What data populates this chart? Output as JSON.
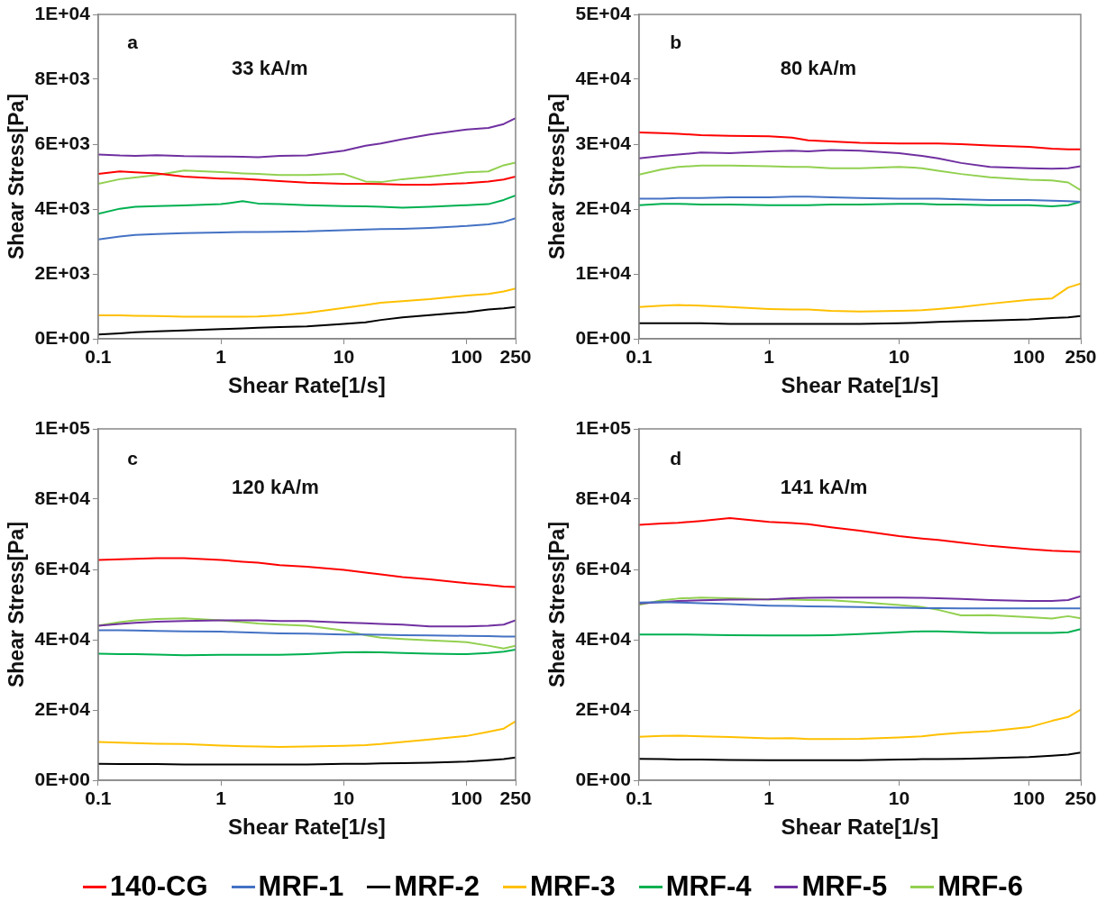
{
  "chart_data": [
    {
      "type": "line",
      "xlabel": "Shear Rate[1/s]",
      "ylabel": "Shear Stress[Pa]",
      "annotations": [
        "a",
        "33 kA/m"
      ],
      "log": "x",
      "grid": false,
      "legend": "bottom",
      "marker": "none",
      "line_style": "solid",
      "x": [
        0.1,
        0.15,
        0.2,
        0.3,
        0.5,
        1,
        1.5,
        2,
        3,
        5,
        10,
        15,
        20,
        30,
        50,
        100,
        150,
        200,
        250
      ],
      "xlim": [
        0.1,
        250
      ],
      "xticks": [
        0.1,
        1,
        10,
        100,
        250
      ],
      "ylim": [
        0,
        10000
      ],
      "yticks": [
        {
          "value": 0,
          "label": "0E+00"
        },
        {
          "value": 2000,
          "label": "2E+03"
        },
        {
          "value": 4000,
          "label": "4E+03"
        },
        {
          "value": 6000,
          "label": "6E+03"
        },
        {
          "value": 8000,
          "label": "8E+03"
        },
        {
          "value": 10000,
          "label": "1E+04"
        }
      ],
      "series": [
        {
          "name": "140-CG",
          "color": "#ff0000",
          "values": [
            5080,
            5160,
            5130,
            5100,
            5000,
            4940,
            4930,
            4900,
            4860,
            4810,
            4780,
            4780,
            4770,
            4750,
            4750,
            4800,
            4850,
            4910,
            5000
          ]
        },
        {
          "name": "MRF-1",
          "color": "#4472c4",
          "values": [
            3060,
            3150,
            3200,
            3230,
            3260,
            3280,
            3290,
            3290,
            3300,
            3310,
            3350,
            3370,
            3380,
            3390,
            3420,
            3480,
            3530,
            3600,
            3720
          ]
        },
        {
          "name": "MRF-2",
          "color": "#000000",
          "values": [
            130,
            170,
            200,
            230,
            260,
            300,
            320,
            340,
            360,
            380,
            460,
            510,
            580,
            660,
            730,
            820,
            900,
            940,
            980
          ]
        },
        {
          "name": "MRF-3",
          "color": "#ffc000",
          "values": [
            720,
            720,
            710,
            700,
            680,
            680,
            680,
            690,
            720,
            800,
            950,
            1040,
            1110,
            1160,
            1220,
            1330,
            1380,
            1460,
            1550
          ]
        },
        {
          "name": "MRF-4",
          "color": "#00b050",
          "values": [
            3850,
            4010,
            4070,
            4090,
            4110,
            4150,
            4240,
            4170,
            4150,
            4120,
            4090,
            4080,
            4070,
            4040,
            4070,
            4120,
            4150,
            4280,
            4420
          ]
        },
        {
          "name": "MRF-5",
          "color": "#7030a0",
          "values": [
            5680,
            5650,
            5640,
            5660,
            5630,
            5620,
            5610,
            5600,
            5640,
            5650,
            5800,
            5950,
            6020,
            6150,
            6300,
            6450,
            6500,
            6620,
            6800
          ]
        },
        {
          "name": "MRF-6",
          "color": "#92d050",
          "values": [
            4780,
            4920,
            4970,
            5050,
            5190,
            5140,
            5100,
            5080,
            5050,
            5050,
            5080,
            4850,
            4830,
            4920,
            5000,
            5130,
            5160,
            5350,
            5430
          ]
        }
      ]
    },
    {
      "type": "line",
      "xlabel": "Shear Rate[1/s]",
      "ylabel": "Shear Stress[Pa]",
      "annotations": [
        "b",
        "80 kA/m"
      ],
      "log": "x",
      "grid": false,
      "marker": "none",
      "line_style": "solid",
      "x": [
        0.1,
        0.15,
        0.2,
        0.3,
        0.5,
        1,
        1.5,
        2,
        3,
        5,
        10,
        15,
        20,
        30,
        50,
        100,
        150,
        200,
        250
      ],
      "xlim": [
        0.1,
        250
      ],
      "xticks": [
        0.1,
        1,
        10,
        100,
        250
      ],
      "ylim": [
        0,
        50000
      ],
      "yticks": [
        {
          "value": 0,
          "label": "0E+00"
        },
        {
          "value": 10000,
          "label": "1E+04"
        },
        {
          "value": 20000,
          "label": "2E+04"
        },
        {
          "value": 30000,
          "label": "3E+04"
        },
        {
          "value": 40000,
          "label": "4E+04"
        },
        {
          "value": 50000,
          "label": "5E+04"
        }
      ],
      "series": [
        {
          "color": "#ff0000",
          "values": [
            31800,
            31700,
            31600,
            31400,
            31300,
            31200,
            31000,
            30600,
            30400,
            30200,
            30100,
            30100,
            30100,
            30000,
            29800,
            29600,
            29300,
            29200,
            29200
          ]
        },
        {
          "color": "#4472c4",
          "values": [
            21600,
            21600,
            21700,
            21700,
            21800,
            21800,
            21900,
            21900,
            21800,
            21700,
            21600,
            21600,
            21600,
            21500,
            21400,
            21400,
            21300,
            21200,
            21100
          ]
        },
        {
          "color": "#000000",
          "values": [
            2400,
            2400,
            2400,
            2400,
            2300,
            2300,
            2300,
            2300,
            2300,
            2300,
            2400,
            2500,
            2600,
            2700,
            2800,
            3000,
            3200,
            3300,
            3500
          ]
        },
        {
          "color": "#ffc000",
          "values": [
            4900,
            5100,
            5200,
            5100,
            4900,
            4600,
            4500,
            4500,
            4300,
            4200,
            4300,
            4400,
            4600,
            4900,
            5400,
            6000,
            6200,
            7900,
            8500
          ]
        },
        {
          "color": "#00b050",
          "values": [
            20600,
            20800,
            20800,
            20700,
            20700,
            20600,
            20600,
            20600,
            20700,
            20700,
            20800,
            20800,
            20700,
            20700,
            20600,
            20600,
            20400,
            20600,
            21100
          ]
        },
        {
          "color": "#7030a0",
          "values": [
            27800,
            28200,
            28400,
            28700,
            28600,
            28900,
            29000,
            28900,
            29100,
            29000,
            28600,
            28200,
            27800,
            27100,
            26500,
            26300,
            26200,
            26300,
            26600
          ]
        },
        {
          "color": "#92d050",
          "values": [
            25300,
            26100,
            26500,
            26700,
            26700,
            26600,
            26500,
            26500,
            26300,
            26300,
            26500,
            26300,
            25900,
            25400,
            24900,
            24500,
            24400,
            24100,
            22900
          ]
        }
      ]
    },
    {
      "type": "line",
      "xlabel": "Shear Rate[1/s]",
      "ylabel": "Shear Stress[Pa]",
      "annotations": [
        "c",
        "120 kA/m"
      ],
      "log": "x",
      "grid": false,
      "marker": "none",
      "line_style": "solid",
      "x": [
        0.1,
        0.15,
        0.2,
        0.3,
        0.5,
        1,
        1.5,
        2,
        3,
        5,
        10,
        15,
        20,
        30,
        50,
        100,
        150,
        200,
        250
      ],
      "xlim": [
        0.1,
        250
      ],
      "xticks": [
        0.1,
        1,
        10,
        100,
        250
      ],
      "ylim": [
        0,
        100000
      ],
      "yticks": [
        {
          "value": 0,
          "label": "0E+00"
        },
        {
          "value": 20000,
          "label": "2E+04"
        },
        {
          "value": 40000,
          "label": "4E+04"
        },
        {
          "value": 60000,
          "label": "6E+04"
        },
        {
          "value": 80000,
          "label": "8E+04"
        },
        {
          "value": 100000,
          "label": "1E+05"
        }
      ],
      "series": [
        {
          "color": "#ff0000",
          "values": [
            62700,
            62900,
            63000,
            63200,
            63200,
            62700,
            62200,
            61900,
            61200,
            60800,
            59900,
            59100,
            58600,
            57800,
            57200,
            56100,
            55600,
            55100,
            55000
          ]
        },
        {
          "color": "#4472c4",
          "values": [
            42700,
            42700,
            42600,
            42500,
            42400,
            42300,
            42100,
            42000,
            41800,
            41700,
            41500,
            41500,
            41400,
            41300,
            41200,
            41100,
            41000,
            40900,
            40900
          ]
        },
        {
          "color": "#000000",
          "values": [
            4700,
            4600,
            4600,
            4600,
            4500,
            4500,
            4500,
            4500,
            4500,
            4500,
            4700,
            4700,
            4800,
            4900,
            5000,
            5300,
            5700,
            6000,
            6500
          ]
        },
        {
          "color": "#ffc000",
          "values": [
            10900,
            10700,
            10600,
            10400,
            10300,
            9900,
            9700,
            9600,
            9500,
            9600,
            9800,
            10000,
            10300,
            10900,
            11600,
            12600,
            13800,
            14700,
            16800
          ]
        },
        {
          "color": "#00b050",
          "values": [
            36000,
            35900,
            35900,
            35800,
            35600,
            35700,
            35700,
            35700,
            35700,
            35900,
            36400,
            36500,
            36400,
            36200,
            36000,
            35900,
            36200,
            36600,
            37200
          ]
        },
        {
          "color": "#7030a0",
          "values": [
            44000,
            44500,
            44800,
            45100,
            45300,
            45500,
            45500,
            45500,
            45300,
            45300,
            44900,
            44700,
            44500,
            44300,
            43800,
            43800,
            44000,
            44300,
            45500
          ]
        },
        {
          "color": "#92d050",
          "values": [
            44000,
            45000,
            45500,
            45900,
            46100,
            45500,
            45000,
            44600,
            44300,
            44000,
            42600,
            41300,
            40600,
            40200,
            39800,
            39300,
            38300,
            37500,
            38300
          ]
        }
      ]
    },
    {
      "type": "line",
      "xlabel": "Shear Rate[1/s]",
      "ylabel": "Shear Stress[Pa]",
      "annotations": [
        "d",
        "141 kA/m"
      ],
      "log": "x",
      "grid": false,
      "marker": "none",
      "line_style": "solid",
      "x": [
        0.1,
        0.15,
        0.2,
        0.3,
        0.5,
        1,
        1.5,
        2,
        3,
        5,
        10,
        15,
        20,
        30,
        50,
        100,
        150,
        200,
        250
      ],
      "xlim": [
        0.1,
        250
      ],
      "xticks": [
        0.1,
        1,
        10,
        100,
        250
      ],
      "ylim": [
        0,
        100000
      ],
      "yticks": [
        {
          "value": 0,
          "label": "0E+00"
        },
        {
          "value": 20000,
          "label": "2E+04"
        },
        {
          "value": 40000,
          "label": "4E+04"
        },
        {
          "value": 60000,
          "label": "6E+04"
        },
        {
          "value": 80000,
          "label": "8E+04"
        },
        {
          "value": 100000,
          "label": "1E+05"
        }
      ],
      "series": [
        {
          "color": "#ff0000",
          "values": [
            72700,
            73100,
            73300,
            73800,
            74600,
            73500,
            73200,
            72900,
            72000,
            71000,
            69500,
            68800,
            68400,
            67600,
            66700,
            65800,
            65300,
            65100,
            65000
          ]
        },
        {
          "color": "#4472c4",
          "values": [
            50600,
            50700,
            50600,
            50400,
            50100,
            49700,
            49600,
            49500,
            49400,
            49300,
            49100,
            49000,
            49000,
            48900,
            48900,
            48900,
            48900,
            48900,
            48900
          ]
        },
        {
          "color": "#000000",
          "values": [
            6100,
            6000,
            5900,
            5900,
            5800,
            5700,
            5700,
            5700,
            5700,
            5700,
            5900,
            6000,
            6000,
            6100,
            6300,
            6600,
            7000,
            7300,
            7900
          ]
        },
        {
          "color": "#ffc000",
          "values": [
            12400,
            12600,
            12700,
            12500,
            12300,
            11900,
            12000,
            11700,
            11700,
            11800,
            12200,
            12500,
            13000,
            13500,
            14000,
            15100,
            16900,
            18000,
            20100
          ]
        },
        {
          "color": "#00b050",
          "values": [
            41500,
            41500,
            41500,
            41400,
            41300,
            41200,
            41200,
            41200,
            41300,
            41600,
            42100,
            42400,
            42400,
            42200,
            41900,
            41900,
            41900,
            42100,
            43000
          ]
        },
        {
          "color": "#7030a0",
          "values": [
            50300,
            50700,
            51000,
            51200,
            51400,
            51500,
            51800,
            51900,
            52000,
            52000,
            52000,
            51900,
            51800,
            51600,
            51300,
            51000,
            51000,
            51300,
            52400
          ]
        },
        {
          "color": "#92d050",
          "values": [
            49900,
            51200,
            51700,
            52000,
            51800,
            51500,
            51400,
            51300,
            51200,
            50700,
            49900,
            49300,
            48500,
            46900,
            47000,
            46400,
            46000,
            46700,
            46100
          ]
        }
      ]
    }
  ]
}
